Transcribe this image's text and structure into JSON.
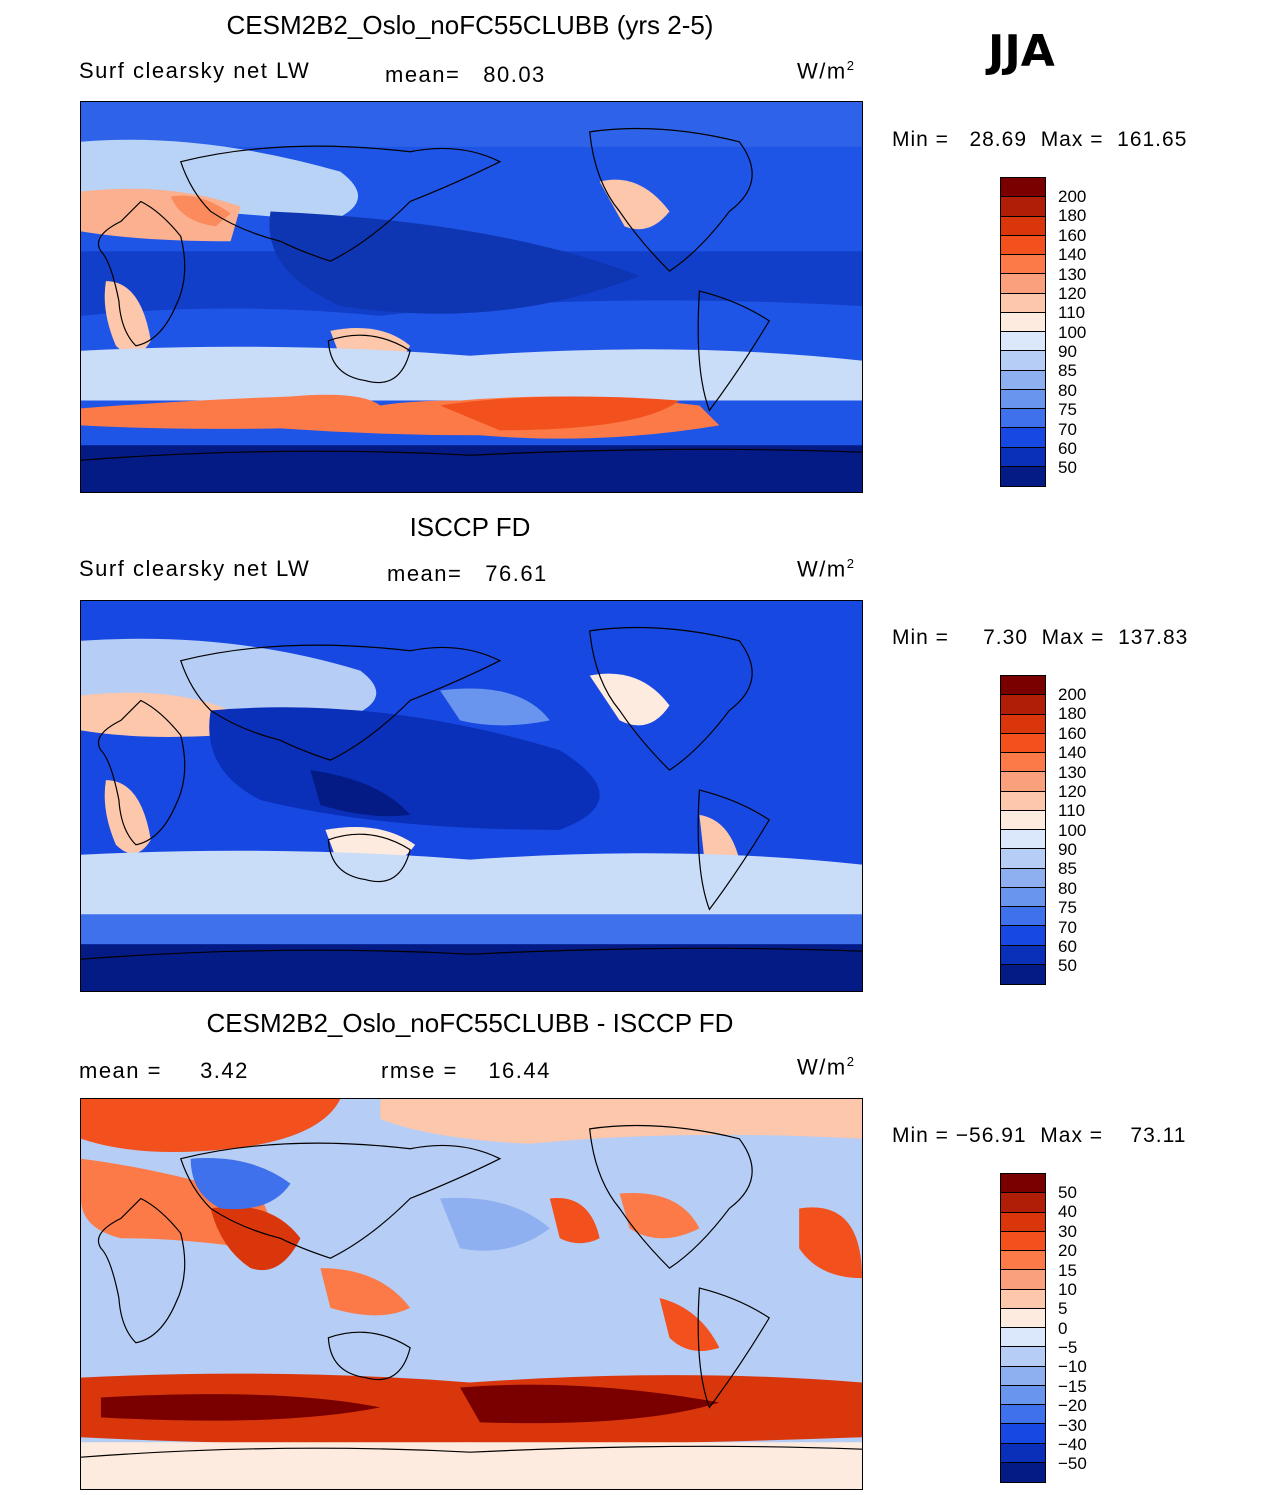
{
  "season": "JJA",
  "panels": [
    {
      "title": "CESM2B2_Oslo_noFC55CLUBB (yrs 2-5)",
      "field": "Surf clearsky net LW",
      "stat1_label": "mean=",
      "stat1_value": "80.03",
      "units": "W/m",
      "units_exp": "2",
      "min_label": "Min =",
      "min_value": "28.69",
      "max_label": "Max =",
      "max_value": "161.65",
      "colorbar_labels": [
        "200",
        "180",
        "160",
        "140",
        "130",
        "120",
        "110",
        "100",
        "90",
        "85",
        "80",
        "75",
        "70",
        "60",
        "50"
      ]
    },
    {
      "title": "ISCCP FD",
      "field": "Surf clearsky net LW",
      "stat1_label": "mean=",
      "stat1_value": "76.61",
      "units": "W/m",
      "units_exp": "2",
      "min_label": "Min =",
      "min_value": "7.30",
      "max_label": "Max =",
      "max_value": "137.83",
      "colorbar_labels": [
        "200",
        "180",
        "160",
        "140",
        "130",
        "120",
        "110",
        "100",
        "90",
        "85",
        "80",
        "75",
        "70",
        "60",
        "50"
      ]
    },
    {
      "title": "CESM2B2_Oslo_noFC55CLUBB - ISCCP FD",
      "stat1_label": "mean =",
      "stat1_value": "3.42",
      "stat2_label": "rmse =",
      "stat2_value": "16.44",
      "units": "W/m",
      "units_exp": "2",
      "min_label": "Min =",
      "min_value": "−56.91",
      "max_label": "Max =",
      "max_value": "73.11",
      "colorbar_labels": [
        "50",
        "40",
        "30",
        "20",
        "15",
        "10",
        "5",
        "0",
        "−5",
        "−10",
        "−15",
        "−20",
        "−30",
        "−40",
        "−50"
      ]
    }
  ],
  "colors": {
    "colorbar": [
      "#7a0000",
      "#b01e07",
      "#d9360c",
      "#f2501d",
      "#fb7a48",
      "#fba07c",
      "#fcc7aa",
      "#feebdf",
      "#dbe8fb",
      "#b6cdf5",
      "#8fb0f0",
      "#6a95ee",
      "#3f71ec",
      "#1748e2",
      "#0a2fb8",
      "#041b85"
    ],
    "coast": "#000000"
  }
}
